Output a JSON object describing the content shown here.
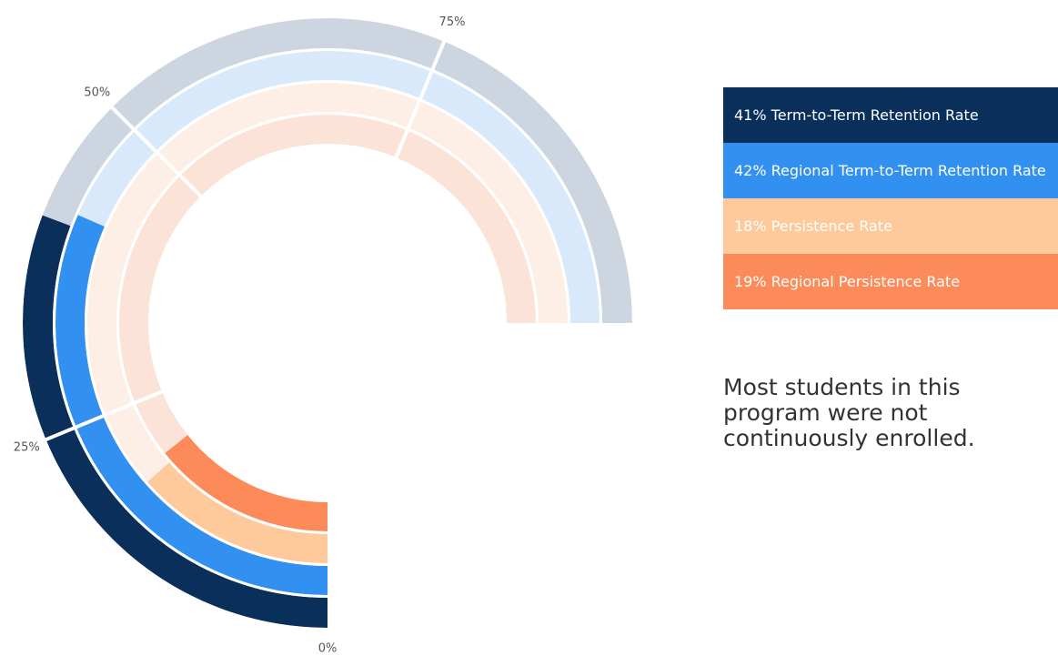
{
  "chart_data": {
    "type": "radial_bar",
    "series": [
      {
        "name": "Term-to-Term Retention Rate",
        "color": "#0b2f5b",
        "track_color": "#cdd6e0",
        "values": [
          41
        ],
        "value_labels": [
          "41%"
        ]
      },
      {
        "name": "Regional Term-to-Term Retention Rate",
        "color": "#3190f0",
        "track_color": "#d7e9fb",
        "values": [
          42
        ],
        "value_labels": [
          "42%"
        ]
      },
      {
        "name": "Persistence Rate",
        "color": "#fec99b",
        "track_color": "#fdefe5",
        "values": [
          18
        ],
        "value_labels": [
          "18%"
        ]
      },
      {
        "name": "Regional Persistence Rate",
        "color": "#fd8b59",
        "track_color": "#fbe3d8",
        "values": [
          19
        ],
        "value_labels": [
          "19%"
        ]
      }
    ],
    "xlim": [
      0,
      100
    ],
    "xticks": [
      {
        "value": 0,
        "label": "0%"
      },
      {
        "value": 25,
        "label": "25%"
      },
      {
        "value": 50,
        "label": "50%"
      },
      {
        "value": 75,
        "label": "75%"
      }
    ],
    "annotation": "Most students in this program were not continuously enrolled."
  }
}
